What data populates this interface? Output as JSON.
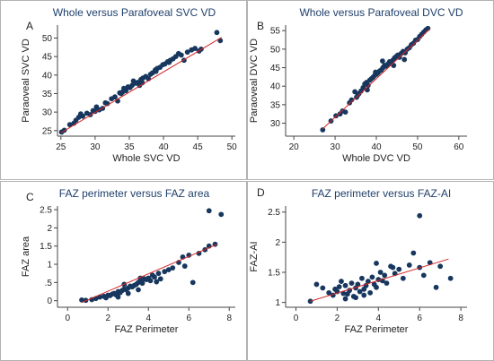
{
  "colors": {
    "point": "#17375e",
    "fit": "#d62728",
    "title": "#1f3f6b"
  },
  "chart_data": [
    {
      "type": "scatter",
      "letter": "A",
      "title": "Whole versus Parafoveal SVC VD",
      "xlabel": "Whole SVC VD",
      "ylabel": "Paraoveal SVC VD",
      "xlim": [
        24.5,
        50.5
      ],
      "ylim": [
        23.5,
        53.5
      ],
      "xticks": [
        25,
        30,
        35,
        40,
        45,
        50
      ],
      "yticks": [
        25,
        30,
        35,
        40,
        45,
        50
      ],
      "fit_line": {
        "x": [
          25,
          48.5
        ],
        "y": [
          24.4,
          50.2
        ]
      },
      "points": [
        [
          25.1,
          24.6
        ],
        [
          25.5,
          25.1
        ],
        [
          26.3,
          26.6
        ],
        [
          26.9,
          27.0
        ],
        [
          27.2,
          27.8
        ],
        [
          27.6,
          28.6
        ],
        [
          27.9,
          29.5
        ],
        [
          28.2,
          28.9
        ],
        [
          28.8,
          29.7
        ],
        [
          29.3,
          29.3
        ],
        [
          30.0,
          30.2
        ],
        [
          30.2,
          31.4
        ],
        [
          30.6,
          30.6
        ],
        [
          31.1,
          31.0
        ],
        [
          31.8,
          32.3
        ],
        [
          32.4,
          33.6
        ],
        [
          32.9,
          34.1
        ],
        [
          33.3,
          33.0
        ],
        [
          33.8,
          35.0
        ],
        [
          34.0,
          35.4
        ],
        [
          34.2,
          36.4
        ],
        [
          34.5,
          35.8
        ],
        [
          34.8,
          36.8
        ],
        [
          35.1,
          36.6
        ],
        [
          35.4,
          37.2
        ],
        [
          35.6,
          38.4
        ],
        [
          35.9,
          37.8
        ],
        [
          36.2,
          38.0
        ],
        [
          36.5,
          37.2
        ],
        [
          36.7,
          38.8
        ],
        [
          37.0,
          39.2
        ],
        [
          37.4,
          39.6
        ],
        [
          37.8,
          39.0
        ],
        [
          38.1,
          40.2
        ],
        [
          38.4,
          40.6
        ],
        [
          38.8,
          41.4
        ],
        [
          39.1,
          41.8
        ],
        [
          39.5,
          42.1
        ],
        [
          39.9,
          42.8
        ],
        [
          40.2,
          43.0
        ],
        [
          40.6,
          43.6
        ],
        [
          41.0,
          44.0
        ],
        [
          41.4,
          44.4
        ],
        [
          41.8,
          45.0
        ],
        [
          42.2,
          45.8
        ],
        [
          42.6,
          45.4
        ],
        [
          43.0,
          44.0
        ],
        [
          43.5,
          46.2
        ],
        [
          44.1,
          46.8
        ],
        [
          44.6,
          47.2
        ],
        [
          45.2,
          46.5
        ],
        [
          45.5,
          47.0
        ],
        [
          47.8,
          51.5
        ],
        [
          48.3,
          49.3
        ],
        [
          31.5,
          32.5
        ],
        [
          36.9,
          37.9
        ],
        [
          33.6,
          35.2
        ],
        [
          38.9,
          41.0
        ],
        [
          40.8,
          43.4
        ],
        [
          29.7,
          30.4
        ]
      ]
    },
    {
      "type": "scatter",
      "letter": "B",
      "title": "Whole versus Parafoveal DVC VD",
      "xlabel": "Whole DVC VD",
      "ylabel": "Paraoveal DVC VD",
      "xlim": [
        18,
        62
      ],
      "ylim": [
        26.5,
        56.5
      ],
      "xticks": [
        20,
        30,
        40,
        50,
        60
      ],
      "yticks": [
        30,
        35,
        40,
        45,
        50,
        55
      ],
      "fit_line": {
        "x": [
          27,
          53
        ],
        "y": [
          28.5,
          55.5
        ]
      },
      "points": [
        [
          27.0,
          28.2
        ],
        [
          29.0,
          30.6
        ],
        [
          30.2,
          32.0
        ],
        [
          31.2,
          32.5
        ],
        [
          31.8,
          33.3
        ],
        [
          32.5,
          33.0
        ],
        [
          33.5,
          35.5
        ],
        [
          34.0,
          36.3
        ],
        [
          34.8,
          38.5
        ],
        [
          35.2,
          37.0
        ],
        [
          35.8,
          38.0
        ],
        [
          36.3,
          38.7
        ],
        [
          36.8,
          39.6
        ],
        [
          37.2,
          40.6
        ],
        [
          37.6,
          41.0
        ],
        [
          38.0,
          40.2
        ],
        [
          38.4,
          41.6
        ],
        [
          38.8,
          42.0
        ],
        [
          39.2,
          42.4
        ],
        [
          39.6,
          42.9
        ],
        [
          40.0,
          43.2
        ],
        [
          40.4,
          43.6
        ],
        [
          40.8,
          44.1
        ],
        [
          41.2,
          44.4
        ],
        [
          41.6,
          45.0
        ],
        [
          42.0,
          45.6
        ],
        [
          42.4,
          45.4
        ],
        [
          42.8,
          46.0
        ],
        [
          43.2,
          46.6
        ],
        [
          43.6,
          46.2
        ],
        [
          44.0,
          47.0
        ],
        [
          44.4,
          47.6
        ],
        [
          44.8,
          48.0
        ],
        [
          45.2,
          48.4
        ],
        [
          45.6,
          47.8
        ],
        [
          46.0,
          48.8
        ],
        [
          46.5,
          49.4
        ],
        [
          47.0,
          49.0
        ],
        [
          47.5,
          50.0
        ],
        [
          48.0,
          50.4
        ],
        [
          48.5,
          51.2
        ],
        [
          49.0,
          51.6
        ],
        [
          49.5,
          52.4
        ],
        [
          50.0,
          52.6
        ],
        [
          50.5,
          53.4
        ],
        [
          51.0,
          54.0
        ],
        [
          51.5,
          54.6
        ],
        [
          52.0,
          55.2
        ],
        [
          52.5,
          55.6
        ],
        [
          41.5,
          46.8
        ],
        [
          37.8,
          39.0
        ],
        [
          44.2,
          45.6
        ],
        [
          39.8,
          43.8
        ],
        [
          35.5,
          37.6
        ],
        [
          46.8,
          47.2
        ]
      ]
    },
    {
      "type": "scatter",
      "letter": "C",
      "title": "FAZ perimeter versus FAZ area",
      "xlabel": "FAZ Perimeter",
      "ylabel": "FAZ area",
      "xlim": [
        -0.5,
        8.3
      ],
      "ylim": [
        -0.18,
        2.6
      ],
      "xticks": [
        0,
        2,
        4,
        6,
        8
      ],
      "yticks": [
        0,
        0.5,
        1,
        1.5,
        2,
        2.5
      ],
      "yticklabels": [
        "0",
        ".5",
        "1",
        "1.5",
        "2",
        "2.5"
      ],
      "fit_line": {
        "x": [
          0.7,
          7.4
        ],
        "y": [
          -0.05,
          1.55
        ]
      },
      "points": [
        [
          0.7,
          0.02
        ],
        [
          0.9,
          0.01
        ],
        [
          1.2,
          0.03
        ],
        [
          1.4,
          0.06
        ],
        [
          1.6,
          0.1
        ],
        [
          1.8,
          0.12
        ],
        [
          1.9,
          0.08
        ],
        [
          2.0,
          0.15
        ],
        [
          2.1,
          0.14
        ],
        [
          2.2,
          0.18
        ],
        [
          2.3,
          0.2
        ],
        [
          2.4,
          0.16
        ],
        [
          2.5,
          0.25
        ],
        [
          2.6,
          0.22
        ],
        [
          2.7,
          0.28
        ],
        [
          2.8,
          0.32
        ],
        [
          2.9,
          0.3
        ],
        [
          3.0,
          0.35
        ],
        [
          3.1,
          0.4
        ],
        [
          3.2,
          0.38
        ],
        [
          3.3,
          0.42
        ],
        [
          3.4,
          0.45
        ],
        [
          3.5,
          0.5
        ],
        [
          3.6,
          0.55
        ],
        [
          3.7,
          0.48
        ],
        [
          3.8,
          0.6
        ],
        [
          3.9,
          0.58
        ],
        [
          4.0,
          0.62
        ],
        [
          4.1,
          0.55
        ],
        [
          4.2,
          0.7
        ],
        [
          4.3,
          0.65
        ],
        [
          4.5,
          0.75
        ],
        [
          4.6,
          0.6
        ],
        [
          4.8,
          0.8
        ],
        [
          5.0,
          0.85
        ],
        [
          5.2,
          0.9
        ],
        [
          5.5,
          1.05
        ],
        [
          5.7,
          1.2
        ],
        [
          5.8,
          0.95
        ],
        [
          6.0,
          1.25
        ],
        [
          6.2,
          0.5
        ],
        [
          6.5,
          1.3
        ],
        [
          6.8,
          1.4
        ],
        [
          7.0,
          1.5
        ],
        [
          7.0,
          2.47
        ],
        [
          7.3,
          1.55
        ],
        [
          7.6,
          2.37
        ],
        [
          2.5,
          0.1
        ],
        [
          3.0,
          0.2
        ],
        [
          3.5,
          0.3
        ],
        [
          2.8,
          0.45
        ],
        [
          3.6,
          0.62
        ],
        [
          4.4,
          0.52
        ]
      ]
    },
    {
      "type": "scatter",
      "letter": "D",
      "title": "FAZ perimeter versus FAZ-AI",
      "xlabel": "FAZ Perimeter",
      "ylabel": "FAZ-AI",
      "xlim": [
        -0.5,
        8.3
      ],
      "ylim": [
        0.92,
        2.6
      ],
      "xticks": [
        0,
        2,
        4,
        6,
        8
      ],
      "yticks": [
        1,
        1.5,
        2,
        2.5
      ],
      "fit_line": {
        "x": [
          0.7,
          7.4
        ],
        "y": [
          1.02,
          1.72
        ]
      },
      "points": [
        [
          0.7,
          1.02
        ],
        [
          1.0,
          1.3
        ],
        [
          1.3,
          1.24
        ],
        [
          1.6,
          1.16
        ],
        [
          1.8,
          1.12
        ],
        [
          1.9,
          1.22
        ],
        [
          2.0,
          1.18
        ],
        [
          2.1,
          1.26
        ],
        [
          2.2,
          1.35
        ],
        [
          2.3,
          1.15
        ],
        [
          2.4,
          1.28
        ],
        [
          2.5,
          1.14
        ],
        [
          2.6,
          1.2
        ],
        [
          2.7,
          1.32
        ],
        [
          2.8,
          1.1
        ],
        [
          2.9,
          1.24
        ],
        [
          3.0,
          1.3
        ],
        [
          3.1,
          1.18
        ],
        [
          3.2,
          1.4
        ],
        [
          3.3,
          1.22
        ],
        [
          3.4,
          1.28
        ],
        [
          3.5,
          1.35
        ],
        [
          3.6,
          1.16
        ],
        [
          3.7,
          1.42
        ],
        [
          3.8,
          1.3
        ],
        [
          3.9,
          1.25
        ],
        [
          4.0,
          1.38
        ],
        [
          4.1,
          1.5
        ],
        [
          4.2,
          1.36
        ],
        [
          4.3,
          1.45
        ],
        [
          4.4,
          1.32
        ],
        [
          4.6,
          1.6
        ],
        [
          4.8,
          1.48
        ],
        [
          5.0,
          1.55
        ],
        [
          5.2,
          1.4
        ],
        [
          5.5,
          1.62
        ],
        [
          5.7,
          1.82
        ],
        [
          6.0,
          2.44
        ],
        [
          6.0,
          1.58
        ],
        [
          6.2,
          1.45
        ],
        [
          6.5,
          1.66
        ],
        [
          6.8,
          1.25
        ],
        [
          7.0,
          1.6
        ],
        [
          7.5,
          1.4
        ],
        [
          2.4,
          1.06
        ],
        [
          2.9,
          1.08
        ],
        [
          3.3,
          1.12
        ],
        [
          3.9,
          1.65
        ],
        [
          4.7,
          1.58
        ]
      ]
    }
  ]
}
